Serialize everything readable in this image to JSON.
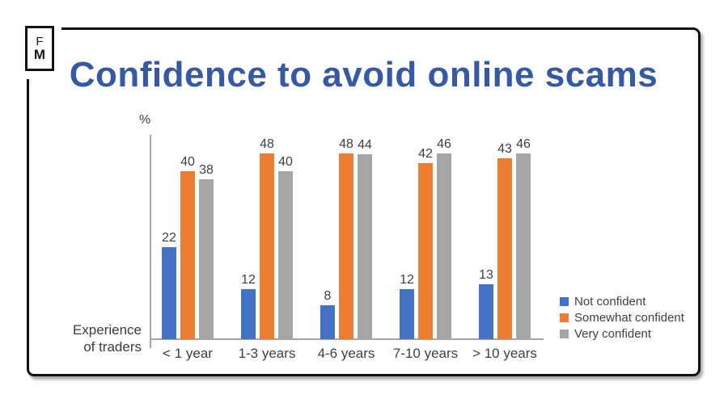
{
  "logo": {
    "line1": "F",
    "line2": "M"
  },
  "title": "Confidence to avoid online scams",
  "colors": {
    "title": "#3559a4",
    "axis": "#a6a6a6",
    "labels": "#404040",
    "frame": "#111111"
  },
  "chart_data": {
    "type": "bar",
    "title": "Confidence to avoid online scams",
    "unit_label": "%",
    "xlabel": "Experience of traders",
    "xlabel_lines": [
      "Experience",
      "of traders"
    ],
    "categories": [
      "< 1 year",
      "1-3 years",
      "4-6 years",
      "7-10 years",
      "> 10 years"
    ],
    "series": [
      {
        "name": "Not confident",
        "color": "#4472C4",
        "values": [
          22,
          12,
          8,
          12,
          13
        ]
      },
      {
        "name": "Somewhat confident",
        "color": "#ED7D31",
        "values": [
          40,
          48,
          48,
          42,
          43
        ]
      },
      {
        "name": "Very confident",
        "color": "#A5A5A5",
        "values": [
          38,
          40,
          44,
          46,
          46
        ]
      }
    ],
    "ylim": [
      0,
      50
    ],
    "grid": false,
    "data_labels": true,
    "legend_position": "right"
  }
}
